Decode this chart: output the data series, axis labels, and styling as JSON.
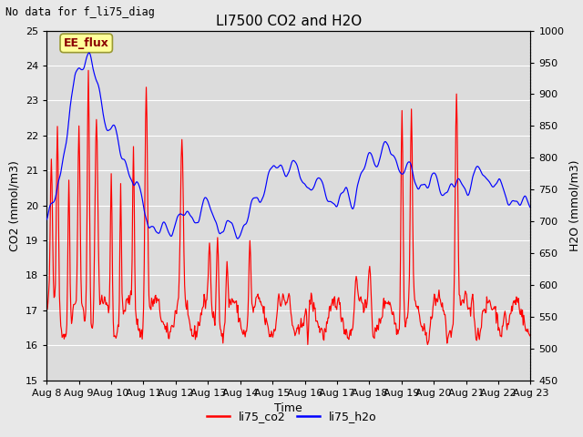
{
  "title": "LI7500 CO2 and H2O",
  "subtitle": "No data for f_li75_diag",
  "xlabel": "Time",
  "ylabel_left": "CO2 (mmol/m3)",
  "ylabel_right": "H2O (mmol/m3)",
  "ylim_left": [
    15.0,
    25.0
  ],
  "ylim_right": [
    450,
    1000
  ],
  "yticks_left": [
    15.0,
    16.0,
    17.0,
    18.0,
    19.0,
    20.0,
    21.0,
    22.0,
    23.0,
    24.0,
    25.0
  ],
  "yticks_right": [
    450,
    500,
    550,
    600,
    650,
    700,
    750,
    800,
    850,
    900,
    950,
    1000
  ],
  "xtick_labels": [
    "Aug 8",
    "Aug 9",
    "Aug 10",
    "Aug 11",
    "Aug 12",
    "Aug 13",
    "Aug 14",
    "Aug 15",
    "Aug 16",
    "Aug 17",
    "Aug 18",
    "Aug 19",
    "Aug 20",
    "Aug 21",
    "Aug 22",
    "Aug 23"
  ],
  "legend_labels": [
    "li75_co2",
    "li75_h2o"
  ],
  "co2_color": "#ff0000",
  "h2o_color": "#0000ff",
  "background_color": "#e8e8e8",
  "plot_bg_color": "#dcdcdc",
  "annotation_text": "EE_flux",
  "annotation_bg": "#ffff99",
  "annotation_border": "#999933",
  "grid_color": "#ffffff",
  "title_fontsize": 11,
  "axis_fontsize": 9,
  "tick_fontsize": 8,
  "legend_fontsize": 9
}
